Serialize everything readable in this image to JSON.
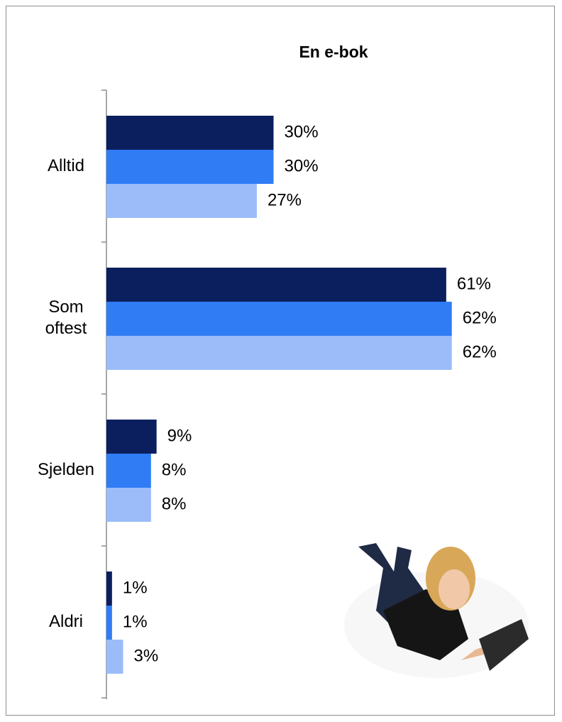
{
  "chart_data": {
    "type": "bar",
    "orientation": "horizontal",
    "title": "En e-bok",
    "categories": [
      "Alltid",
      "Som oftest",
      "Sjelden",
      "Aldri"
    ],
    "series": [
      {
        "color": "#0b1f5e",
        "values": [
          30,
          61,
          9,
          1
        ],
        "value_labels": [
          "30%",
          "61%",
          "9%",
          "1%"
        ]
      },
      {
        "color": "#2f7cf5",
        "values": [
          30,
          62,
          8,
          1
        ],
        "value_labels": [
          "30%",
          "62%",
          "8%",
          "1%"
        ]
      },
      {
        "color": "#9bbcf9",
        "values": [
          27,
          62,
          8,
          3
        ],
        "value_labels": [
          "27%",
          "62%",
          "8%",
          "3%"
        ]
      }
    ]
  }
}
